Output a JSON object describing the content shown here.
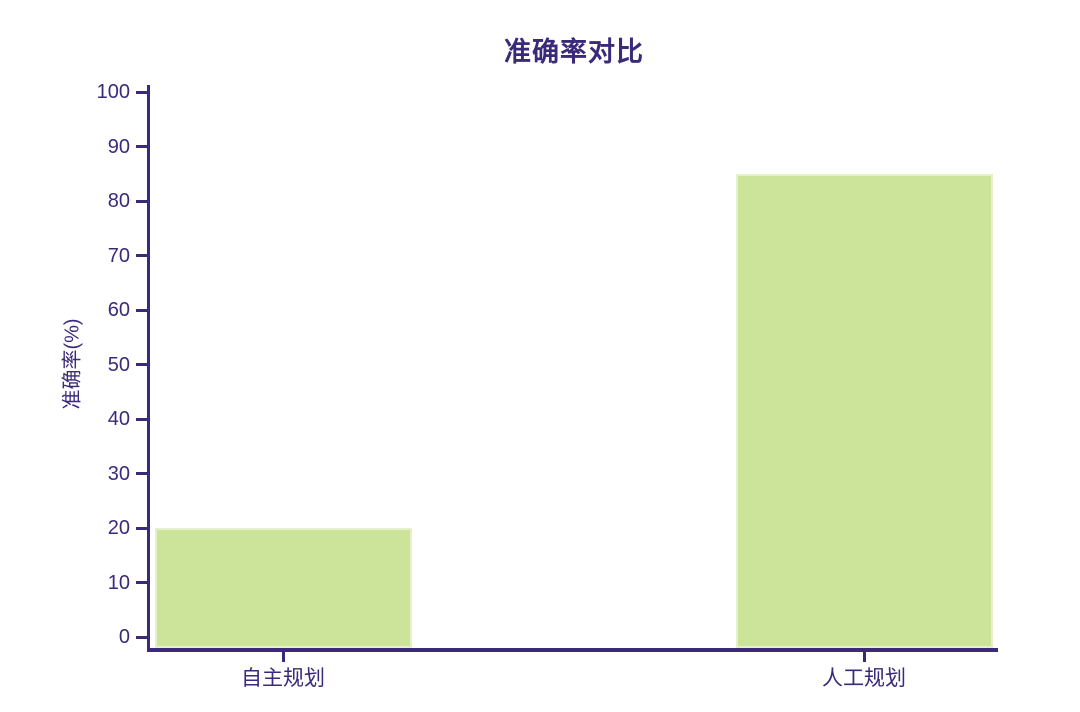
{
  "chart_data": {
    "type": "bar",
    "title": "准确率对比",
    "categories": [
      "自主规划",
      "人工规划"
    ],
    "values": [
      20,
      85
    ],
    "xlabel": "",
    "ylabel": "准确率(%)",
    "ylim": [
      0,
      100
    ],
    "ytick_step": 10,
    "ytick_labels": [
      "0",
      "10",
      "20",
      "30",
      "40",
      "50",
      "60",
      "70",
      "80",
      "90",
      "100"
    ],
    "legend": null,
    "grid": false,
    "bar_color": "#cbe49a",
    "bar_edge_color": "#e6f1ca",
    "axis_color": "#3b2a7a",
    "text_color": "#3b2a7a",
    "background_color": "#ffffff"
  }
}
